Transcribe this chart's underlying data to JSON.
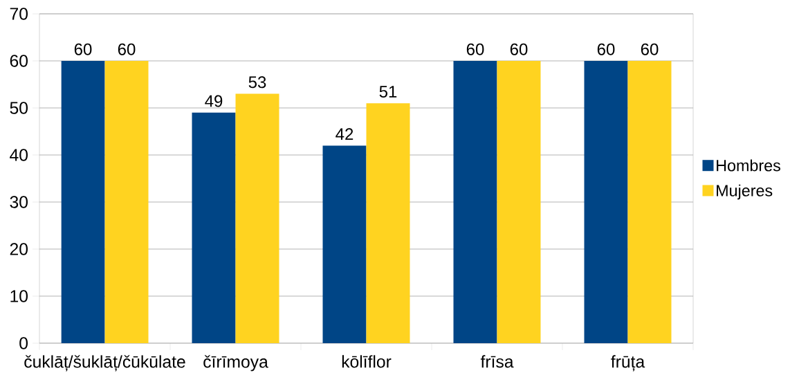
{
  "chart_data": {
    "type": "bar",
    "categories": [
      "čuklāț/šuklāț/čūkūlate",
      "čīrīmoya",
      "kōlīflor",
      "frīsa",
      "frūța"
    ],
    "series": [
      {
        "name": "Hombres",
        "color": "#004586",
        "values": [
          60,
          49,
          42,
          60,
          60
        ]
      },
      {
        "name": "Mujeres",
        "color": "#ffd320",
        "values": [
          60,
          53,
          51,
          60,
          60
        ]
      }
    ],
    "ylim": [
      0,
      70
    ],
    "yticks": [
      0,
      10,
      20,
      30,
      40,
      50,
      60,
      70
    ],
    "grid": "y",
    "legend": "right",
    "data_labels": true
  }
}
